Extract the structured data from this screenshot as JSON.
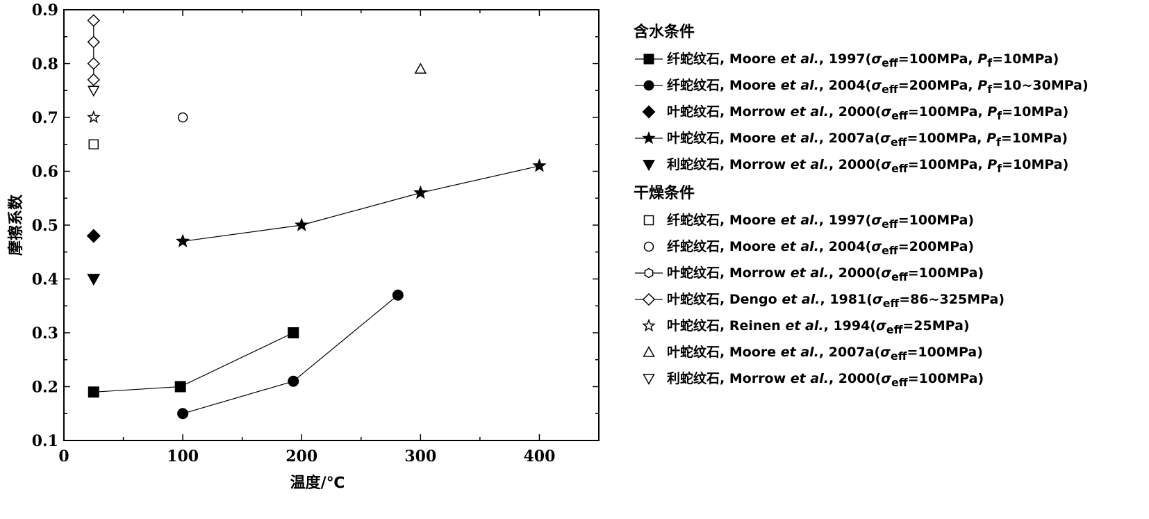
{
  "chart_data": {
    "type": "scatter",
    "xlabel": "温度/℃",
    "ylabel": "摩擦系数",
    "xlim": [
      0,
      450
    ],
    "ylim": [
      0.1,
      0.9
    ],
    "x_ticks": [
      0,
      100,
      200,
      300,
      400
    ],
    "y_ticks": [
      0.1,
      0.2,
      0.3,
      0.4,
      0.5,
      0.6,
      0.7,
      0.8,
      0.9
    ],
    "x_tick_labels": [
      "0",
      "100",
      "200",
      "300",
      "400"
    ],
    "y_tick_labels": [
      "0.1",
      "0.2",
      "0.3",
      "0.4",
      "0.5",
      "0.6",
      "0.7",
      "0.8",
      "0.9"
    ],
    "grid": false,
    "legend_position": "right",
    "groups": [
      {
        "heading": "含水条件",
        "series": [
          {
            "mineral": "纤蛇纹石",
            "author": "Moore",
            "etal": "et al.",
            "year": "1997",
            "cond_pre": "σ",
            "cond_sub": "eff",
            "cond_post": "=100MPa, ",
            "pf_label": "P",
            "pf_sub": "f",
            "pf_post": "=10MPa)",
            "marker": "square",
            "filled": true,
            "line": true,
            "x": [
              25,
              98,
              193
            ],
            "y": [
              0.19,
              0.2,
              0.3
            ]
          },
          {
            "mineral": "纤蛇纹石",
            "author": "Moore",
            "etal": "et al.",
            "year": "2004",
            "cond_pre": "σ",
            "cond_sub": "eff",
            "cond_post": "=200MPa, ",
            "pf_label": "P",
            "pf_sub": "f",
            "pf_post": "=10~30MPa)",
            "marker": "circle",
            "filled": true,
            "line": true,
            "x": [
              100,
              193,
              281
            ],
            "y": [
              0.15,
              0.21,
              0.37
            ]
          },
          {
            "mineral": "叶蛇纹石",
            "author": "Morrow",
            "etal": "et al.",
            "year": "2000",
            "cond_pre": "σ",
            "cond_sub": "eff",
            "cond_post": "=100MPa, ",
            "pf_label": "P",
            "pf_sub": "f",
            "pf_post": "=10MPa)",
            "marker": "diamond",
            "filled": true,
            "line": false,
            "x": [
              25
            ],
            "y": [
              0.48
            ]
          },
          {
            "mineral": "叶蛇纹石",
            "author": "Moore",
            "etal": "et al.",
            "year": "2007a",
            "cond_pre": "σ",
            "cond_sub": "eff",
            "cond_post": "=100MPa, ",
            "pf_label": "P",
            "pf_sub": "f",
            "pf_post": "=10MPa)",
            "marker": "star",
            "filled": true,
            "line": true,
            "x": [
              100,
              200,
              300,
              400
            ],
            "y": [
              0.47,
              0.5,
              0.56,
              0.61
            ]
          },
          {
            "mineral": "利蛇纹石",
            "author": "Morrow",
            "etal": "et al.",
            "year": "2000",
            "cond_pre": "σ",
            "cond_sub": "eff",
            "cond_post": "=100MPa, ",
            "pf_label": "P",
            "pf_sub": "f",
            "pf_post": "=10MPa)",
            "marker": "triangle-down",
            "filled": true,
            "line": false,
            "x": [
              25
            ],
            "y": [
              0.4
            ]
          }
        ]
      },
      {
        "heading": "干燥条件",
        "series": [
          {
            "mineral": "纤蛇纹石",
            "author": "Moore",
            "etal": "et al.",
            "year": "1997",
            "cond_pre": "σ",
            "cond_sub": "eff",
            "cond_post": "=100MPa)",
            "marker": "square",
            "filled": false,
            "line": false,
            "x": [
              25
            ],
            "y": [
              0.65
            ]
          },
          {
            "mineral": "纤蛇纹石",
            "author": "Moore",
            "etal": "et al.",
            "year": "2004",
            "cond_pre": "σ",
            "cond_sub": "eff",
            "cond_post": "=200MPa)",
            "marker": "circle",
            "filled": false,
            "line": false,
            "x": [
              100
            ],
            "y": [
              0.7
            ]
          },
          {
            "mineral": "叶蛇纹石",
            "author": "Morrow",
            "etal": "et al.",
            "year": "2000",
            "cond_pre": "σ",
            "cond_sub": "eff",
            "cond_post": "=100MPa)",
            "marker": "hexagon",
            "filled": false,
            "line": true,
            "x": [],
            "y": []
          },
          {
            "mineral": "叶蛇纹石",
            "author": "Dengo",
            "etal": "et al.",
            "year": "1981",
            "cond_pre": "σ",
            "cond_sub": "eff",
            "cond_post": "=86~325MPa)",
            "marker": "diamond",
            "filled": false,
            "line": true,
            "x": [
              25,
              25,
              25,
              25
            ],
            "y": [
              0.88,
              0.84,
              0.8,
              0.77
            ]
          },
          {
            "mineral": "叶蛇纹石",
            "author": "Reinen",
            "etal": "et al.",
            "year": "1994",
            "cond_pre": "σ",
            "cond_sub": "eff",
            "cond_post": "=25MPa)",
            "marker": "star",
            "filled": false,
            "line": false,
            "x": [
              25
            ],
            "y": [
              0.7
            ]
          },
          {
            "mineral": "叶蛇纹石",
            "author": "Moore",
            "etal": "et al.",
            "year": "2007a",
            "cond_pre": "σ",
            "cond_sub": "eff",
            "cond_post": "=100MPa)",
            "marker": "triangle-up",
            "filled": false,
            "line": false,
            "x": [
              300
            ],
            "y": [
              0.79
            ]
          },
          {
            "mineral": "利蛇纹石",
            "author": "Morrow",
            "etal": "et al.",
            "year": "2000",
            "cond_pre": "σ",
            "cond_sub": "eff",
            "cond_post": "=100MPa)",
            "marker": "triangle-down",
            "filled": false,
            "line": false,
            "x": [
              25
            ],
            "y": [
              0.75
            ]
          }
        ]
      }
    ]
  }
}
